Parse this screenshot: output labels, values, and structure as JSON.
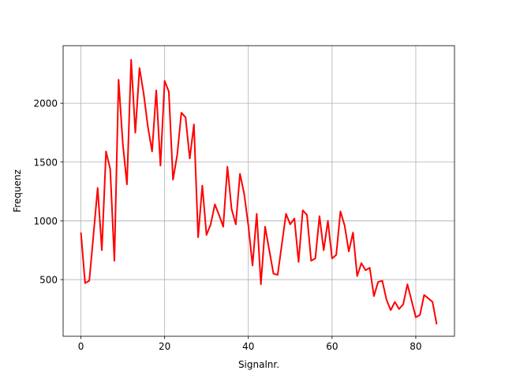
{
  "chart_data": {
    "type": "line",
    "xlabel": "Signalnr.",
    "ylabel": "Frequenz",
    "xlim": [
      -4.25,
      89.25
    ],
    "ylim": [
      18,
      2490
    ],
    "xticks": [
      0,
      20,
      40,
      60,
      80
    ],
    "yticks": [
      500,
      1000,
      1500,
      2000
    ],
    "grid": true,
    "series": [
      {
        "color": "#ff0000",
        "x": [
          0,
          1,
          2,
          3,
          4,
          5,
          6,
          7,
          8,
          9,
          10,
          11,
          12,
          13,
          14,
          15,
          16,
          17,
          18,
          19,
          20,
          21,
          22,
          23,
          24,
          25,
          26,
          27,
          28,
          29,
          30,
          31,
          32,
          33,
          34,
          35,
          36,
          37,
          38,
          39,
          40,
          41,
          42,
          43,
          44,
          45,
          46,
          47,
          48,
          49,
          50,
          51,
          52,
          53,
          54,
          55,
          56,
          57,
          58,
          59,
          60,
          61,
          62,
          63,
          64,
          65,
          66,
          67,
          68,
          69,
          70,
          71,
          72,
          73,
          74,
          75,
          76,
          77,
          78,
          79,
          80,
          81,
          82,
          83,
          84,
          85
        ],
        "y": [
          900,
          470,
          490,
          880,
          1280,
          750,
          1590,
          1440,
          660,
          2200,
          1660,
          1310,
          2370,
          1750,
          2300,
          2080,
          1800,
          1590,
          2110,
          1470,
          2190,
          2100,
          1350,
          1560,
          1920,
          1880,
          1530,
          1820,
          860,
          1300,
          880,
          970,
          1140,
          1050,
          950,
          1460,
          1100,
          970,
          1400,
          1230,
          960,
          620,
          1060,
          460,
          950,
          750,
          550,
          540,
          800,
          1060,
          970,
          1020,
          650,
          1090,
          1050,
          660,
          680,
          1040,
          750,
          1000,
          680,
          710,
          1080,
          960,
          740,
          900,
          530,
          640,
          580,
          600,
          360,
          480,
          490,
          330,
          240,
          310,
          250,
          290,
          460,
          320,
          180,
          200,
          370,
          340,
          310,
          120
        ]
      }
    ]
  }
}
